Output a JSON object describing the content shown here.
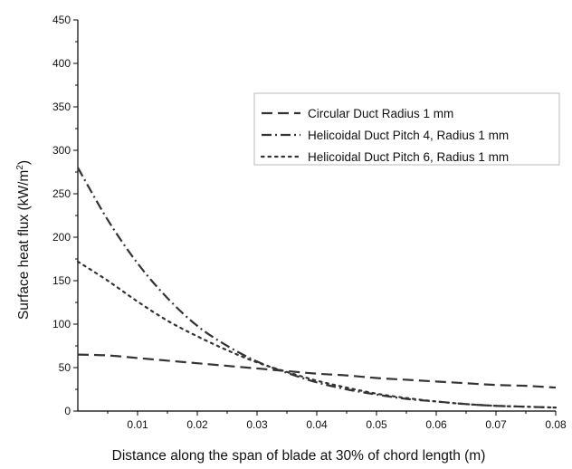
{
  "chart_data": {
    "type": "line",
    "title": "",
    "xlabel": "Distance along the span of blade at 30% of chord length (m)",
    "ylabel_main": "Surface heat flux (kW/m",
    "ylabel_sup": "2",
    "ylabel_close": ")",
    "xlim": [
      0,
      0.08
    ],
    "ylim": [
      0,
      450
    ],
    "x_ticks": [
      0.01,
      0.02,
      0.03,
      0.04,
      0.05,
      0.06,
      0.07,
      0.08
    ],
    "x_tick_labels": [
      "0.01",
      "0.02",
      "0.03",
      "0.04",
      "0.05",
      "0.06",
      "0.07",
      "0.08"
    ],
    "y_ticks": [
      0,
      50,
      100,
      150,
      200,
      250,
      300,
      350,
      400,
      450
    ],
    "y_tick_labels": [
      "0",
      "50",
      "100",
      "150",
      "200",
      "250",
      "300",
      "350",
      "400",
      "450"
    ],
    "grid": false,
    "legend_position": "top-right",
    "series": [
      {
        "name": "Circular Duct Radius 1 mm",
        "style": "dashed",
        "x": [
          0,
          0.005,
          0.01,
          0.015,
          0.02,
          0.025,
          0.03,
          0.035,
          0.04,
          0.045,
          0.05,
          0.055,
          0.06,
          0.065,
          0.07,
          0.075,
          0.08
        ],
        "y": [
          65,
          64,
          61,
          58,
          55,
          52,
          49,
          46,
          43,
          41,
          38,
          36,
          34,
          32,
          30,
          29,
          27
        ]
      },
      {
        "name": "Helicoidal Duct Pitch 4, Radius 1 mm",
        "style": "dash-dot",
        "x": [
          0,
          0.005,
          0.01,
          0.015,
          0.02,
          0.025,
          0.03,
          0.035,
          0.04,
          0.045,
          0.05,
          0.055,
          0.06,
          0.065,
          0.07,
          0.075,
          0.08
        ],
        "y": [
          280,
          220,
          170,
          130,
          98,
          75,
          57,
          44,
          33,
          25,
          19,
          14,
          11,
          8,
          6,
          5,
          4
        ]
      },
      {
        "name": "Helicoidal Duct Pitch 6, Radius 1 mm",
        "style": "dotted",
        "x": [
          0,
          0.005,
          0.01,
          0.015,
          0.02,
          0.025,
          0.03,
          0.035,
          0.04,
          0.045,
          0.05,
          0.055,
          0.06,
          0.065,
          0.07,
          0.075,
          0.08
        ],
        "y": [
          172,
          150,
          126,
          104,
          86,
          70,
          56,
          45,
          35,
          27,
          20,
          15,
          11,
          8,
          6,
          5,
          4
        ]
      }
    ]
  }
}
